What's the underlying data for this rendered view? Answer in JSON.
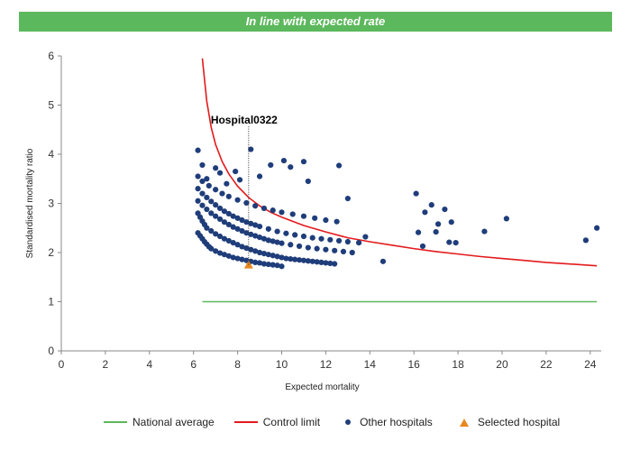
{
  "banner": {
    "text": "In line with expected rate",
    "color": "#5cb85c"
  },
  "chart_data": {
    "type": "scatter",
    "xlabel": "Expected mortality",
    "ylabel": "Standardised mortality ratio",
    "xlim": [
      0,
      24.5
    ],
    "ylim": [
      0,
      6
    ],
    "xticks": [
      0,
      2,
      4,
      6,
      8,
      10,
      12,
      14,
      16,
      18,
      20,
      22,
      24
    ],
    "yticks": [
      0,
      1,
      2,
      3,
      4,
      5,
      6
    ],
    "grid": false,
    "legend_position": "bottom",
    "annotation": {
      "text": "Hospital0322",
      "x": 8.5,
      "y": 1.75
    },
    "series": [
      {
        "name": "National average",
        "type": "line",
        "color": "#5cb85c",
        "x": [
          6.4,
          24.3
        ],
        "y": [
          1,
          1
        ]
      },
      {
        "name": "Control limit",
        "type": "line",
        "color": "#e31a1c",
        "x": [
          6.4,
          6.6,
          6.8,
          7.0,
          7.3,
          7.6,
          8.0,
          8.5,
          9.0,
          9.5,
          10,
          11,
          12,
          13,
          14,
          15,
          16,
          17,
          18,
          19,
          20,
          21,
          22,
          23,
          24.3
        ],
        "y": [
          5.95,
          5.08,
          4.55,
          4.2,
          3.85,
          3.6,
          3.35,
          3.12,
          2.95,
          2.82,
          2.72,
          2.55,
          2.42,
          2.3,
          2.22,
          2.15,
          2.08,
          2.02,
          1.97,
          1.92,
          1.88,
          1.84,
          1.8,
          1.77,
          1.73
        ]
      },
      {
        "name": "Other hospitals",
        "type": "scatter",
        "color": "#1f3d7a",
        "x": [
          6.2,
          6.3,
          6.4,
          6.5,
          6.6,
          6.7,
          6.8,
          7.0,
          7.2,
          7.4,
          7.6,
          7.8,
          8.0,
          8.2,
          8.4,
          8.6,
          8.8,
          9.0,
          9.2,
          9.4,
          9.6,
          9.8,
          10.0,
          6.2,
          6.3,
          6.4,
          6.5,
          6.6,
          6.8,
          7.0,
          7.2,
          7.4,
          7.6,
          7.8,
          8.0,
          8.2,
          8.4,
          8.6,
          8.8,
          9.0,
          9.2,
          9.4,
          9.6,
          9.8,
          10.0,
          10.2,
          10.4,
          10.6,
          10.8,
          11.0,
          11.2,
          11.4,
          11.6,
          11.8,
          12.0,
          12.2,
          12.4,
          6.2,
          6.4,
          6.6,
          6.8,
          7.0,
          7.2,
          7.4,
          7.6,
          7.8,
          8.0,
          8.2,
          8.4,
          8.6,
          8.8,
          9.0,
          9.2,
          9.4,
          9.6,
          9.8,
          10.0,
          10.4,
          10.8,
          11.2,
          11.6,
          12.0,
          12.4,
          12.8,
          13.2,
          6.2,
          6.4,
          6.6,
          6.8,
          7.0,
          7.2,
          7.4,
          7.6,
          7.8,
          8.0,
          8.2,
          8.4,
          8.6,
          8.8,
          9.0,
          9.4,
          9.8,
          10.2,
          10.6,
          11.0,
          11.4,
          11.8,
          12.2,
          12.6,
          13.0,
          6.2,
          6.4,
          6.7,
          7.0,
          7.3,
          7.6,
          8.0,
          8.4,
          8.8,
          9.2,
          9.6,
          10.0,
          10.5,
          11.0,
          11.5,
          12.0,
          12.5,
          6.2,
          6.4,
          6.6,
          7.0,
          7.2,
          7.5,
          7.9,
          8.1,
          8.6,
          9.0,
          9.5,
          10.1,
          10.4,
          11.0,
          11.2,
          12.6,
          13.0,
          13.5,
          13.8,
          14.6,
          16.1,
          16.2,
          16.4,
          16.5,
          16.8,
          17.0,
          17.1,
          17.4,
          17.6,
          17.7,
          17.9,
          19.2,
          20.2,
          23.8,
          24.3
        ],
        "y": [
          2.4,
          2.34,
          2.28,
          2.22,
          2.17,
          2.12,
          2.08,
          2.03,
          1.99,
          1.96,
          1.93,
          1.9,
          1.88,
          1.86,
          1.84,
          1.82,
          1.8,
          1.79,
          1.77,
          1.76,
          1.75,
          1.74,
          1.72,
          2.8,
          2.72,
          2.64,
          2.57,
          2.5,
          2.44,
          2.38,
          2.33,
          2.28,
          2.24,
          2.2,
          2.16,
          2.12,
          2.09,
          2.06,
          2.03,
          2.0,
          1.98,
          1.96,
          1.94,
          1.92,
          1.9,
          1.88,
          1.87,
          1.86,
          1.85,
          1.84,
          1.83,
          1.82,
          1.81,
          1.8,
          1.79,
          1.78,
          1.77,
          3.05,
          2.96,
          2.88,
          2.8,
          2.74,
          2.68,
          2.62,
          2.57,
          2.52,
          2.48,
          2.44,
          2.4,
          2.37,
          2.34,
          2.31,
          2.28,
          2.25,
          2.23,
          2.21,
          2.19,
          2.16,
          2.13,
          2.1,
          2.08,
          2.06,
          2.04,
          2.02,
          2.0,
          3.3,
          3.2,
          3.12,
          3.04,
          2.97,
          2.9,
          2.84,
          2.79,
          2.74,
          2.7,
          2.66,
          2.62,
          2.59,
          2.56,
          2.53,
          2.48,
          2.43,
          2.39,
          2.36,
          2.33,
          2.3,
          2.28,
          2.26,
          2.24,
          2.22,
          3.55,
          3.45,
          3.36,
          3.28,
          3.2,
          3.14,
          3.07,
          3.01,
          2.95,
          2.9,
          2.86,
          2.82,
          2.78,
          2.74,
          2.7,
          2.66,
          2.63,
          4.08,
          3.78,
          3.5,
          3.72,
          3.62,
          3.4,
          3.65,
          3.48,
          4.1,
          3.55,
          3.78,
          3.87,
          3.74,
          3.85,
          3.45,
          3.77,
          3.1,
          2.2,
          2.32,
          1.82,
          3.2,
          2.41,
          2.13,
          2.82,
          2.97,
          2.42,
          2.58,
          2.88,
          2.21,
          2.62,
          2.2,
          2.43,
          2.69,
          2.25,
          2.5
        ]
      },
      {
        "name": "Selected hospital",
        "type": "scatter",
        "color": "#e8871e",
        "x": [
          8.5
        ],
        "y": [
          1.75
        ]
      }
    ]
  }
}
